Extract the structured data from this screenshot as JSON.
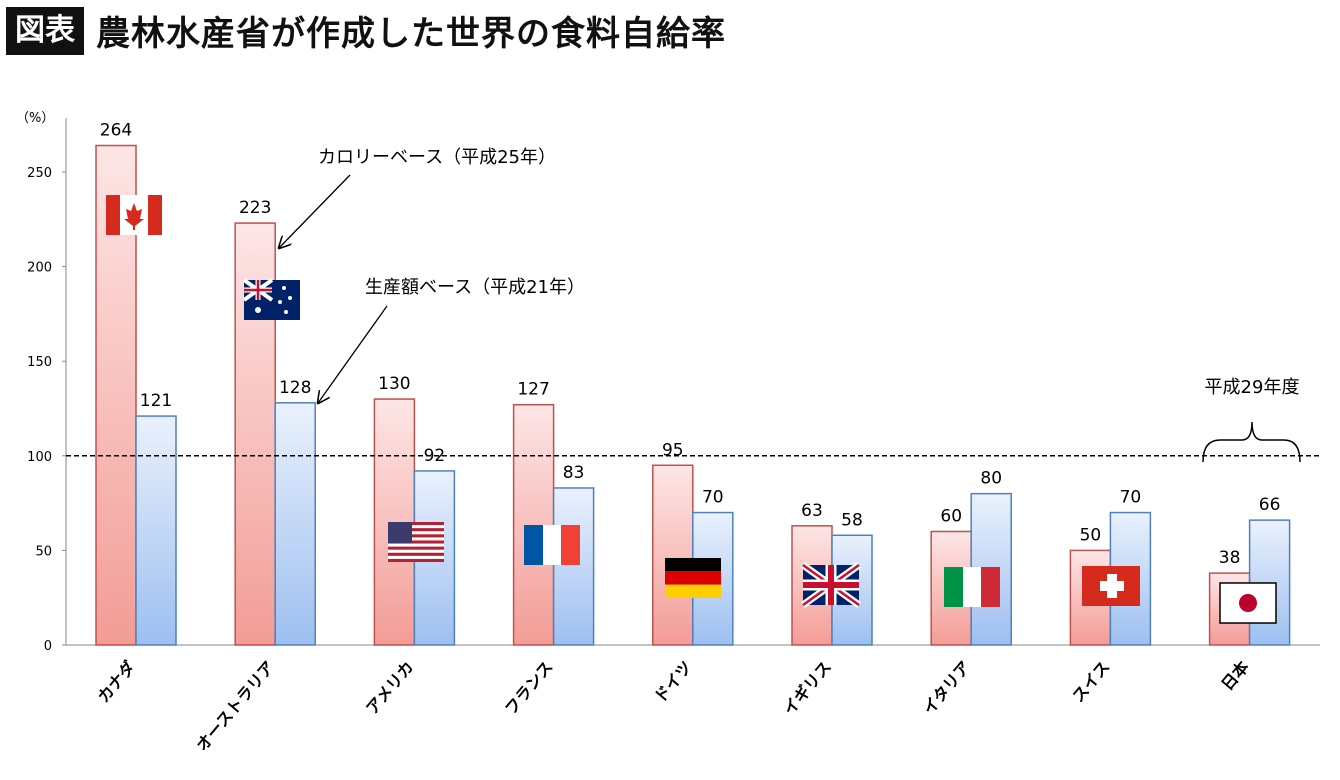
{
  "header": {
    "badge": "図表",
    "title": "農林水産省が作成した世界の食料自給率"
  },
  "chart_data": {
    "type": "bar",
    "ylabel": "（%）",
    "ylim": [
      0,
      264
    ],
    "yticks": [
      0,
      50,
      100,
      150,
      200,
      250
    ],
    "categories": [
      "カナダ",
      "オーストラリア",
      "アメリカ",
      "フランス",
      "ドイツ",
      "イギリス",
      "イタリア",
      "スイス",
      "日本"
    ],
    "series": [
      {
        "name": "カロリーベース（平成25年）",
        "values": [
          264,
          223,
          130,
          127,
          95,
          63,
          60,
          50,
          38
        ],
        "color": "#c0504d"
      },
      {
        "name": "生産額ベース（平成21年）",
        "values": [
          121,
          128,
          92,
          83,
          70,
          58,
          80,
          70,
          66
        ],
        "color": "#4f81bd"
      }
    ],
    "reference_line": 100,
    "annotation_japan": "平成29年度",
    "flags": [
      "canada-flag-icon",
      "australia-flag-icon",
      "usa-flag-icon",
      "france-flag-icon",
      "germany-flag-icon",
      "uk-flag-icon",
      "italy-flag-icon",
      "switzerland-flag-icon",
      "japan-flag-icon"
    ],
    "grid": false,
    "legend": "annotations"
  }
}
